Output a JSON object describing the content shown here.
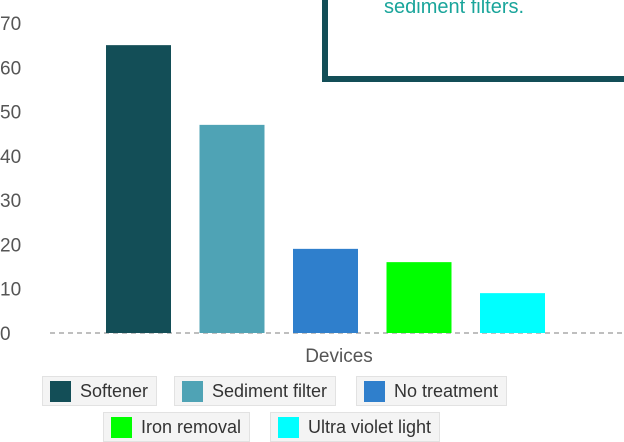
{
  "callout": {
    "text": "sediment filters."
  },
  "legend": {
    "items": [
      {
        "label": "Softener",
        "color": "#134e57"
      },
      {
        "label": "Sediment filter",
        "color": "#4fa3b5"
      },
      {
        "label": "No treatment",
        "color": "#2f7fcc"
      },
      {
        "label": "Iron removal",
        "color": "#00ff00"
      },
      {
        "label": "Ultra violet light",
        "color": "#00ffff"
      }
    ]
  },
  "chart_data": {
    "type": "bar",
    "xlabel": "Devices",
    "ylabel": "",
    "ylim": [
      0,
      70
    ],
    "yticks": [
      0,
      10,
      20,
      30,
      40,
      50,
      60,
      70
    ],
    "grid": false,
    "legend_position": "bottom",
    "series": [
      {
        "name": "Softener",
        "value": 65,
        "color": "#134e57"
      },
      {
        "name": "Sediment filter",
        "value": 47,
        "color": "#4fa3b5"
      },
      {
        "name": "No treatment",
        "value": 19,
        "color": "#2f7fcc"
      },
      {
        "name": "Iron removal",
        "value": 16,
        "color": "#00ff00"
      },
      {
        "name": "Ultra violet light",
        "value": 9,
        "color": "#00ffff"
      }
    ]
  }
}
